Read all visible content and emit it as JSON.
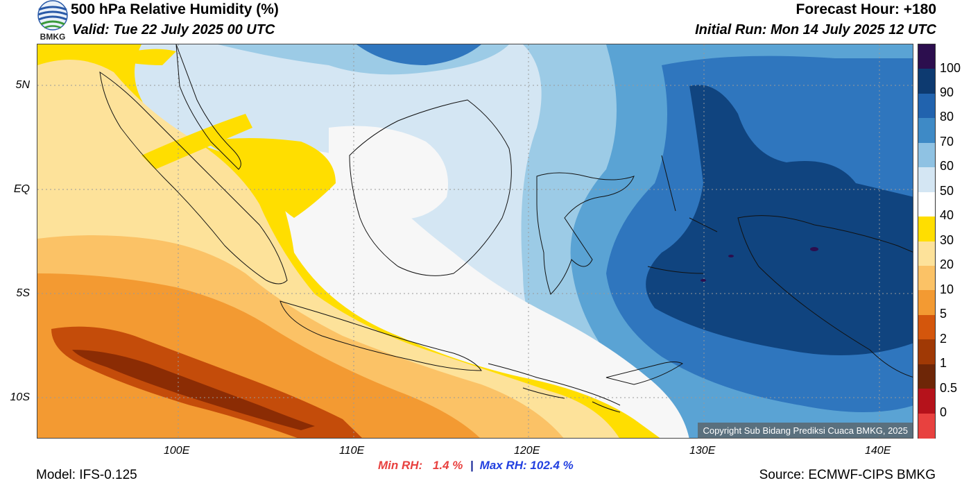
{
  "header": {
    "title": "500 hPa Relative Humidity (%)",
    "valid": "Valid: Tue 22 July 2025 00 UTC",
    "forecast_hour": "Forecast Hour: +180",
    "initial_run": "Initial Run: Mon 14 July 2025 12 UTC",
    "logo_text": "BMKG"
  },
  "map": {
    "lat_labels": [
      "5N",
      "EQ",
      "5S",
      "10S"
    ],
    "lon_labels": [
      "100E",
      "110E",
      "120E",
      "130E",
      "140E"
    ],
    "copyright": "Copyright Sub Bidang Prediksi Cuaca BMKG, 2025",
    "colors": {
      "dry_deep": "#8b2c04",
      "dry_mid": "#c44c0a",
      "dry": "#f39a32",
      "dry_light": "#fbc266",
      "pale": "#fde29a",
      "yellow": "#ffde00",
      "white": "#f7f7f7",
      "wet_pale": "#d4e6f3",
      "wet_light": "#9ccbe6",
      "wet": "#5aa3d4",
      "wet_mid": "#2f76be",
      "wet_deep": "#10447f",
      "wet_max": "#2c0e4e"
    }
  },
  "colorbar": {
    "labels": [
      "100",
      "90",
      "80",
      "70",
      "60",
      "50",
      "40",
      "30",
      "20",
      "10",
      "5",
      "2",
      "1",
      "0.5",
      "0"
    ],
    "colors": [
      "#2c0e4e",
      "#0d3a70",
      "#2163ae",
      "#3e8ac6",
      "#8fc2e3",
      "#d4e6f3",
      "#ffffff",
      "#ffde00",
      "#fde29a",
      "#fbc266",
      "#f39a32",
      "#d4560c",
      "#a03905",
      "#6e2607",
      "#b5121b",
      "#e8413f"
    ]
  },
  "footer": {
    "min_label": "Min RH:",
    "min_value": "1.4 %",
    "separator": "|",
    "max_label": "Max RH:",
    "max_value": "102.4 %",
    "model": "Model: IFS-0.125",
    "source": "Source: ECMWF-CIPS BMKG"
  }
}
